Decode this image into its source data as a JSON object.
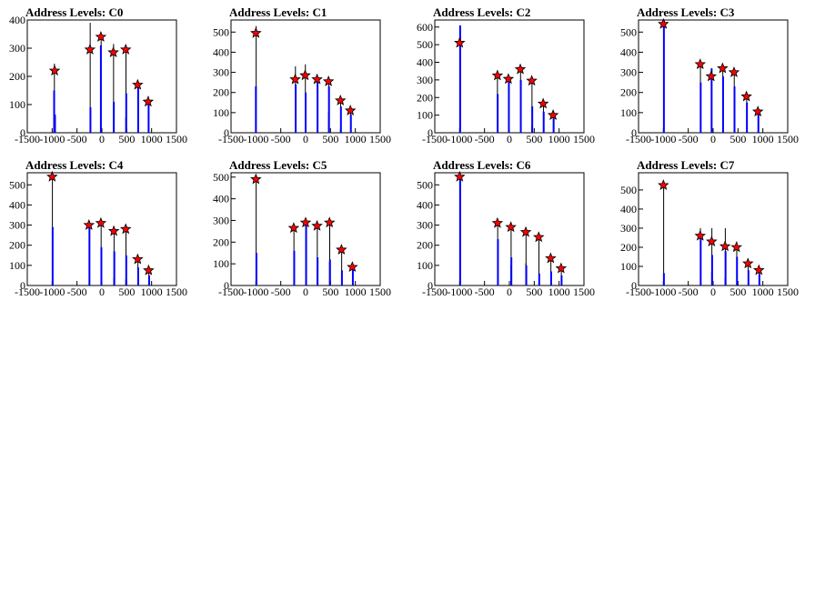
{
  "chart_data": [
    {
      "type": "bar",
      "title": "Address Levels: C0",
      "xlim": [
        -1500,
        1500
      ],
      "ylim": [
        0,
        400
      ],
      "xticks": [
        -1500,
        -1000,
        -500,
        0,
        500,
        1000,
        1500
      ],
      "yticks": [
        0,
        100,
        200,
        300,
        400
      ],
      "peaks": [
        {
          "x": -950,
          "y": 220
        },
        {
          "x": -240,
          "y": 295
        },
        {
          "x": -20,
          "y": 340
        },
        {
          "x": 230,
          "y": 285
        },
        {
          "x": 480,
          "y": 295
        },
        {
          "x": 720,
          "y": 170
        },
        {
          "x": 930,
          "y": 110
        }
      ],
      "bars_blue": [
        {
          "x": -960,
          "y": 150
        },
        {
          "x": -945,
          "y": 65
        },
        {
          "x": -230,
          "y": 90
        },
        {
          "x": -20,
          "y": 310
        },
        {
          "x": 240,
          "y": 110
        },
        {
          "x": 490,
          "y": 140
        },
        {
          "x": 730,
          "y": 180
        },
        {
          "x": 940,
          "y": 100
        }
      ],
      "bars_black": [
        {
          "x": -955,
          "y": 245
        },
        {
          "x": -935,
          "y": 60
        },
        {
          "x": -235,
          "y": 390
        },
        {
          "x": -15,
          "y": 330
        },
        {
          "x": 235,
          "y": 315
        },
        {
          "x": 485,
          "y": 300
        },
        {
          "x": 725,
          "y": 185
        },
        {
          "x": 935,
          "y": 130
        },
        {
          "x": 230,
          "y": 30
        },
        {
          "x": 480,
          "y": 55
        }
      ]
    },
    {
      "type": "bar",
      "title": "Address Levels: C1",
      "xlim": [
        -1500,
        1500
      ],
      "ylim": [
        0,
        560
      ],
      "xticks": [
        -1500,
        -1000,
        -500,
        0,
        500,
        1000,
        1500
      ],
      "yticks": [
        0,
        100,
        200,
        300,
        400,
        500
      ],
      "peaks": [
        {
          "x": -1000,
          "y": 495
        },
        {
          "x": -210,
          "y": 265
        },
        {
          "x": -10,
          "y": 285
        },
        {
          "x": 230,
          "y": 265
        },
        {
          "x": 460,
          "y": 255
        },
        {
          "x": 700,
          "y": 160
        },
        {
          "x": 900,
          "y": 110
        }
      ],
      "bars_blue": [
        {
          "x": -1000,
          "y": 230
        },
        {
          "x": -200,
          "y": 240
        },
        {
          "x": 0,
          "y": 200
        },
        {
          "x": 240,
          "y": 250
        },
        {
          "x": 470,
          "y": 230
        },
        {
          "x": 710,
          "y": 130
        },
        {
          "x": 910,
          "y": 90
        }
      ],
      "bars_black": [
        {
          "x": -995,
          "y": 530
        },
        {
          "x": -205,
          "y": 330
        },
        {
          "x": -5,
          "y": 340
        },
        {
          "x": 235,
          "y": 280
        },
        {
          "x": 465,
          "y": 260
        },
        {
          "x": 705,
          "y": 170
        },
        {
          "x": 905,
          "y": 115
        },
        {
          "x": 460,
          "y": 100
        },
        {
          "x": 700,
          "y": 20
        }
      ]
    },
    {
      "type": "bar",
      "title": "Address Levels: C2",
      "xlim": [
        -1500,
        1500
      ],
      "ylim": [
        0,
        640
      ],
      "xticks": [
        -1500,
        -1000,
        -500,
        0,
        500,
        1000,
        1500
      ],
      "yticks": [
        0,
        100,
        200,
        300,
        400,
        500,
        600
      ],
      "peaks": [
        {
          "x": -1000,
          "y": 510
        },
        {
          "x": -240,
          "y": 325
        },
        {
          "x": -20,
          "y": 305
        },
        {
          "x": 220,
          "y": 360
        },
        {
          "x": 450,
          "y": 295
        },
        {
          "x": 680,
          "y": 165
        },
        {
          "x": 880,
          "y": 100
        }
      ],
      "bars_blue": [
        {
          "x": -990,
          "y": 610
        },
        {
          "x": -235,
          "y": 220
        },
        {
          "x": -10,
          "y": 290
        },
        {
          "x": 230,
          "y": 300
        },
        {
          "x": 460,
          "y": 150
        },
        {
          "x": 690,
          "y": 120
        },
        {
          "x": 890,
          "y": 80
        }
      ],
      "bars_black": [
        {
          "x": -995,
          "y": 580
        },
        {
          "x": -240,
          "y": 330
        },
        {
          "x": -15,
          "y": 320
        },
        {
          "x": 225,
          "y": 370
        },
        {
          "x": 455,
          "y": 300
        },
        {
          "x": 685,
          "y": 170
        },
        {
          "x": 885,
          "y": 110
        },
        {
          "x": 450,
          "y": 40
        }
      ]
    },
    {
      "type": "bar",
      "title": "Address Levels: C3",
      "xlim": [
        -1500,
        1500
      ],
      "ylim": [
        0,
        560
      ],
      "xticks": [
        -1500,
        -1000,
        -500,
        0,
        500,
        1000,
        1500
      ],
      "yticks": [
        0,
        100,
        200,
        300,
        400,
        500
      ],
      "peaks": [
        {
          "x": -1000,
          "y": 540
        },
        {
          "x": -260,
          "y": 340
        },
        {
          "x": -40,
          "y": 280
        },
        {
          "x": 190,
          "y": 320
        },
        {
          "x": 420,
          "y": 300
        },
        {
          "x": 670,
          "y": 180
        },
        {
          "x": 900,
          "y": 105
        }
      ],
      "bars_blue": [
        {
          "x": -990,
          "y": 560
        },
        {
          "x": -250,
          "y": 250
        },
        {
          "x": -30,
          "y": 320
        },
        {
          "x": 200,
          "y": 280
        },
        {
          "x": 430,
          "y": 230
        },
        {
          "x": 680,
          "y": 150
        },
        {
          "x": 910,
          "y": 90
        }
      ],
      "bars_black": [
        {
          "x": -995,
          "y": 530
        },
        {
          "x": -255,
          "y": 360
        },
        {
          "x": -35,
          "y": 300
        },
        {
          "x": 195,
          "y": 330
        },
        {
          "x": 425,
          "y": 310
        },
        {
          "x": 675,
          "y": 190
        },
        {
          "x": 905,
          "y": 110
        }
      ]
    },
    {
      "type": "bar",
      "title": "Address Levels: C4",
      "xlim": [
        -1500,
        1500
      ],
      "ylim": [
        0,
        560
      ],
      "xticks": [
        -1500,
        -1000,
        -500,
        0,
        500,
        1000,
        1500
      ],
      "yticks": [
        0,
        100,
        200,
        300,
        400,
        500
      ],
      "peaks": [
        {
          "x": -1000,
          "y": 540
        },
        {
          "x": -260,
          "y": 300
        },
        {
          "x": -20,
          "y": 310
        },
        {
          "x": 240,
          "y": 270
        },
        {
          "x": 480,
          "y": 280
        },
        {
          "x": 720,
          "y": 130
        },
        {
          "x": 940,
          "y": 75
        }
      ],
      "bars_blue": [
        {
          "x": -990,
          "y": 290
        },
        {
          "x": -250,
          "y": 290
        },
        {
          "x": -10,
          "y": 190
        },
        {
          "x": 250,
          "y": 170
        },
        {
          "x": 490,
          "y": 150
        },
        {
          "x": 730,
          "y": 90
        },
        {
          "x": 950,
          "y": 50
        }
      ],
      "bars_black": [
        {
          "x": -995,
          "y": 550
        },
        {
          "x": -255,
          "y": 310
        },
        {
          "x": -15,
          "y": 320
        },
        {
          "x": 245,
          "y": 280
        },
        {
          "x": 485,
          "y": 285
        },
        {
          "x": 725,
          "y": 140
        },
        {
          "x": 945,
          "y": 80
        },
        {
          "x": 240,
          "y": 40
        },
        {
          "x": 480,
          "y": 30
        }
      ]
    },
    {
      "type": "bar",
      "title": "Address Levels: C5",
      "xlim": [
        -1500,
        1500
      ],
      "ylim": [
        0,
        520
      ],
      "xticks": [
        -1500,
        -1000,
        -500,
        0,
        500,
        1000,
        1500
      ],
      "yticks": [
        0,
        100,
        200,
        300,
        400,
        500
      ],
      "peaks": [
        {
          "x": -1000,
          "y": 490
        },
        {
          "x": -240,
          "y": 265
        },
        {
          "x": 0,
          "y": 290
        },
        {
          "x": 230,
          "y": 275
        },
        {
          "x": 480,
          "y": 290
        },
        {
          "x": 720,
          "y": 165
        },
        {
          "x": 940,
          "y": 85
        }
      ],
      "bars_blue": [
        {
          "x": -990,
          "y": 150
        },
        {
          "x": -230,
          "y": 160
        },
        {
          "x": 10,
          "y": 280
        },
        {
          "x": 240,
          "y": 130
        },
        {
          "x": 490,
          "y": 120
        },
        {
          "x": 730,
          "y": 70
        },
        {
          "x": 950,
          "y": 80
        }
      ],
      "bars_black": [
        {
          "x": -995,
          "y": 500
        },
        {
          "x": -235,
          "y": 280
        },
        {
          "x": 5,
          "y": 300
        },
        {
          "x": 235,
          "y": 280
        },
        {
          "x": 485,
          "y": 300
        },
        {
          "x": 725,
          "y": 170
        },
        {
          "x": 945,
          "y": 90
        },
        {
          "x": 230,
          "y": 80
        },
        {
          "x": 480,
          "y": 110
        }
      ]
    },
    {
      "type": "bar",
      "title": "Address Levels: C6",
      "xlim": [
        -1500,
        1500
      ],
      "ylim": [
        0,
        560
      ],
      "xticks": [
        -1500,
        -1000,
        -500,
        0,
        500,
        1000,
        1500
      ],
      "yticks": [
        0,
        100,
        200,
        300,
        400,
        500
      ],
      "peaks": [
        {
          "x": -1000,
          "y": 540
        },
        {
          "x": -240,
          "y": 310
        },
        {
          "x": 30,
          "y": 290
        },
        {
          "x": 330,
          "y": 265
        },
        {
          "x": 590,
          "y": 240
        },
        {
          "x": 830,
          "y": 135
        },
        {
          "x": 1040,
          "y": 85
        }
      ],
      "bars_blue": [
        {
          "x": -990,
          "y": 550
        },
        {
          "x": -230,
          "y": 230
        },
        {
          "x": 40,
          "y": 140
        },
        {
          "x": 340,
          "y": 100
        },
        {
          "x": 600,
          "y": 60
        },
        {
          "x": 840,
          "y": 70
        },
        {
          "x": 1050,
          "y": 50
        }
      ],
      "bars_black": [
        {
          "x": -995,
          "y": 530
        },
        {
          "x": -235,
          "y": 320
        },
        {
          "x": 35,
          "y": 300
        },
        {
          "x": 335,
          "y": 270
        },
        {
          "x": 595,
          "y": 250
        },
        {
          "x": 835,
          "y": 140
        },
        {
          "x": 1045,
          "y": 90
        },
        {
          "x": 30,
          "y": 100
        },
        {
          "x": 330,
          "y": 110
        }
      ]
    },
    {
      "type": "bar",
      "title": "Address Levels: C7",
      "xlim": [
        -1500,
        1500
      ],
      "ylim": [
        0,
        590
      ],
      "xticks": [
        -1500,
        -1000,
        -500,
        0,
        500,
        1000,
        1500
      ],
      "yticks": [
        0,
        100,
        200,
        300,
        400,
        500
      ],
      "peaks": [
        {
          "x": -1000,
          "y": 525
        },
        {
          "x": -260,
          "y": 260
        },
        {
          "x": -30,
          "y": 230
        },
        {
          "x": 240,
          "y": 205
        },
        {
          "x": 470,
          "y": 200
        },
        {
          "x": 700,
          "y": 115
        },
        {
          "x": 920,
          "y": 80
        }
      ],
      "bars_blue": [
        {
          "x": -990,
          "y": 65
        },
        {
          "x": -250,
          "y": 250
        },
        {
          "x": -20,
          "y": 160
        },
        {
          "x": 250,
          "y": 180
        },
        {
          "x": 480,
          "y": 150
        },
        {
          "x": 710,
          "y": 80
        },
        {
          "x": 930,
          "y": 60
        }
      ],
      "bars_black": [
        {
          "x": -995,
          "y": 540
        },
        {
          "x": -255,
          "y": 300
        },
        {
          "x": -25,
          "y": 300
        },
        {
          "x": 245,
          "y": 300
        },
        {
          "x": 475,
          "y": 230
        },
        {
          "x": 705,
          "y": 120
        },
        {
          "x": 925,
          "y": 85
        },
        {
          "x": -30,
          "y": 70
        },
        {
          "x": 240,
          "y": 40
        }
      ]
    }
  ]
}
